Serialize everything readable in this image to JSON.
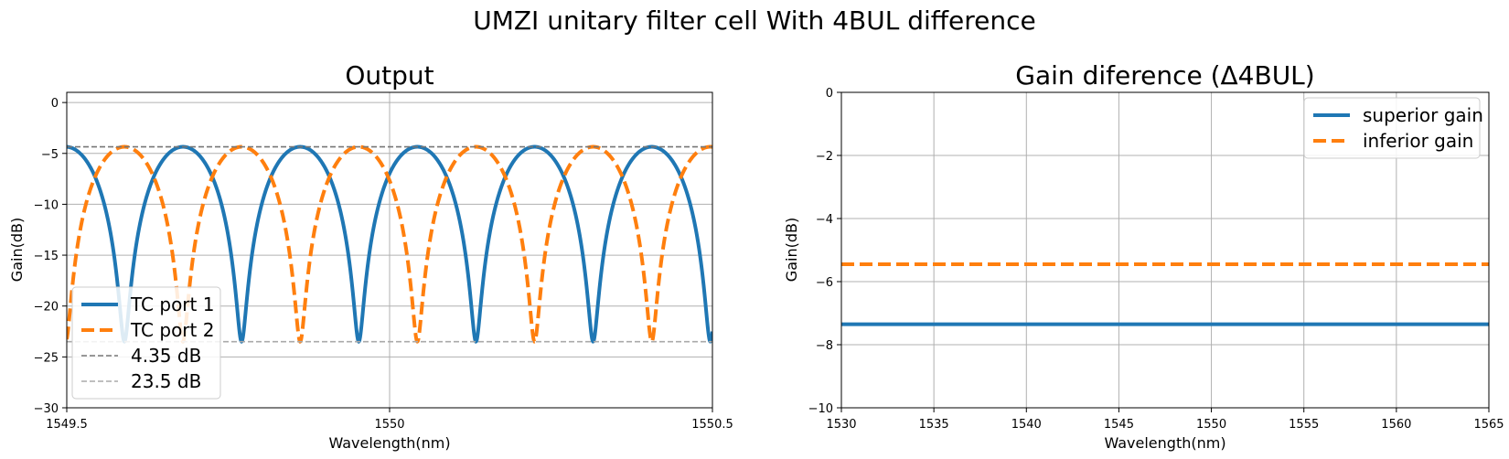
{
  "figure_title": "UMZI unitary filter cell With 4BUL difference",
  "chart_data": [
    {
      "type": "line",
      "title": "Output",
      "xlabel": "Wavelength(nm)",
      "ylabel": "Gain(dB)",
      "xlim": [
        1549.5,
        1550.5
      ],
      "ylim": [
        -30,
        1
      ],
      "xticks": [
        1549.5,
        1550,
        1550.5
      ],
      "xtick_labels": [
        "1549.5",
        "1550",
        "1550.5"
      ],
      "yticks": [
        0,
        -5,
        -10,
        -15,
        -20,
        -25,
        -30
      ],
      "ytick_labels": [
        "0",
        "−5",
        "−10",
        "−15",
        "−20",
        "−25",
        "−30"
      ],
      "grid": true,
      "legend_position": "lower-left",
      "fsr_nm": 0.1815,
      "series": [
        {
          "name": "TC port 1",
          "color": "#1f77b4",
          "style": "solid",
          "max_db": -4.35,
          "min_db": -23.5,
          "peaks_nm": [
            1549.4985,
            1549.68,
            1549.8615,
            1550.043,
            1550.2245,
            1550.406
          ]
        },
        {
          "name": "TC port 2",
          "color": "#ff7f0e",
          "style": "dashed",
          "max_db": -4.35,
          "min_db": -23.5,
          "peaks_nm": [
            1549.58925,
            1549.77075,
            1549.95225,
            1550.13375,
            1550.31525,
            1550.49675
          ]
        },
        {
          "name": "4.35 dB",
          "color": "#777777",
          "style": "dashed-thin",
          "y": -4.35
        },
        {
          "name": "23.5 dB",
          "color": "#aaaaaa",
          "style": "dashed-thin",
          "y": -23.5
        }
      ]
    },
    {
      "type": "line",
      "title": "Gain diference (Δ4BUL)",
      "xlabel": "Wavelength(nm)",
      "ylabel": "Gain(dB)",
      "xlim": [
        1530,
        1565
      ],
      "ylim": [
        -10,
        0
      ],
      "xticks": [
        1530,
        1535,
        1540,
        1545,
        1550,
        1555,
        1560,
        1565
      ],
      "xtick_labels": [
        "1530",
        "1535",
        "1540",
        "1545",
        "1550",
        "1555",
        "1560",
        "1565"
      ],
      "yticks": [
        0,
        -2,
        -4,
        -6,
        -8,
        -10
      ],
      "ytick_labels": [
        "0",
        "−2",
        "−4",
        "−6",
        "−8",
        "−10"
      ],
      "grid": true,
      "legend_position": "upper-right",
      "series": [
        {
          "name": "superior gain",
          "color": "#1f77b4",
          "style": "solid",
          "x": [
            1530,
            1565
          ],
          "y": [
            -7.35,
            -7.35
          ]
        },
        {
          "name": "inferior gain",
          "color": "#ff7f0e",
          "style": "dashed",
          "x": [
            1530,
            1565
          ],
          "y": [
            -5.45,
            -5.45
          ]
        }
      ]
    }
  ]
}
